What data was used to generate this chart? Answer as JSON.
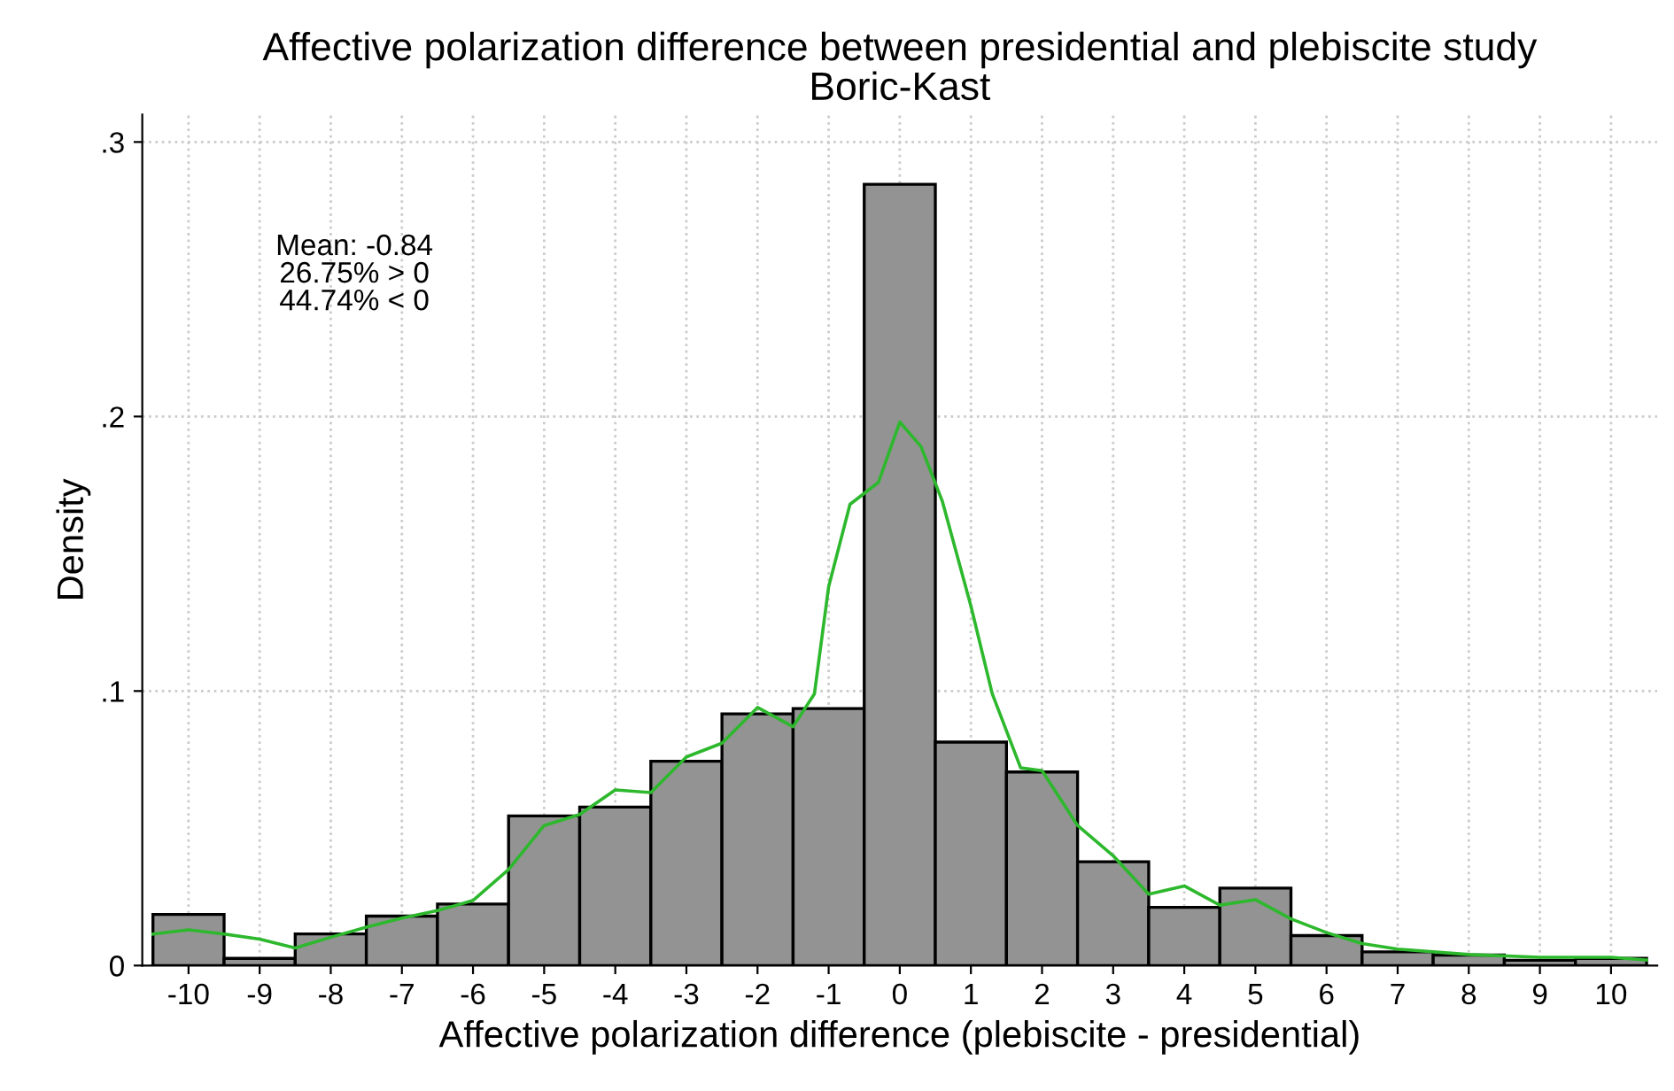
{
  "chart_data": {
    "type": "histogram",
    "title": "Affective polarization difference between presidential and plebiscite study\nBoric-Kast",
    "xlabel": "Affective polarization difference (plebiscite - presidential)",
    "ylabel": "Density",
    "bins": [
      -10.5,
      -9.5,
      -8.5,
      -7.5,
      -6.5,
      -5.5,
      -4.5,
      -3.5,
      -2.5,
      -1.5,
      -0.5,
      0.5,
      1.5,
      2.5,
      3.5,
      4.5,
      5.5,
      6.5,
      7.5,
      8.5,
      9.5,
      10.5
    ],
    "values": [
      0.0186,
      0.0026,
      0.0115,
      0.018,
      0.0224,
      0.0545,
      0.0577,
      0.0744,
      0.0917,
      0.0936,
      0.2846,
      0.0814,
      0.0705,
      0.0378,
      0.0212,
      0.0282,
      0.0109,
      0.005,
      0.0038,
      0.0019,
      0.0026
    ],
    "color": "#939393",
    "series": [
      {
        "type": "line",
        "color": "#2db82d",
        "x": [
          -10.5,
          -10,
          -9.5,
          -9,
          -8.5,
          -8,
          -7.5,
          -7,
          -6.5,
          -6,
          -5.5,
          -5,
          -4.5,
          -4,
          -3.5,
          -3,
          -2.5,
          -2,
          -1.5,
          -1.2,
          -1,
          -0.7,
          -0.3,
          0,
          0.3,
          0.6,
          1,
          1.3,
          1.7,
          2,
          2.5,
          3,
          3.5,
          4,
          4.5,
          5,
          5.5,
          6,
          6.5,
          7,
          8,
          9,
          10,
          10.5
        ],
        "values": [
          0.0115,
          0.013,
          0.0115,
          0.0096,
          0.0064,
          0.0103,
          0.014,
          0.0173,
          0.02,
          0.0237,
          0.035,
          0.051,
          0.055,
          0.064,
          0.063,
          0.076,
          0.081,
          0.094,
          0.087,
          0.099,
          0.138,
          0.168,
          0.176,
          0.198,
          0.189,
          0.169,
          0.131,
          0.099,
          0.072,
          0.071,
          0.051,
          0.04,
          0.026,
          0.029,
          0.022,
          0.024,
          0.017,
          0.012,
          0.008,
          0.006,
          0.004,
          0.003,
          0.003,
          0.002
        ]
      }
    ],
    "annotations": [
      "Mean: -0.84\n26.75% > 0\n44.74% < 0"
    ],
    "xlim": [
      -10.65,
      10.65
    ],
    "xticks": [
      {
        "value": -10,
        "label": "-10"
      },
      {
        "value": -9,
        "label": "-9"
      },
      {
        "value": -8,
        "label": "-8"
      },
      {
        "value": -7,
        "label": "-7"
      },
      {
        "value": -6,
        "label": "-6"
      },
      {
        "value": -5,
        "label": "-5"
      },
      {
        "value": -4,
        "label": "-4"
      },
      {
        "value": -3,
        "label": "-3"
      },
      {
        "value": -2,
        "label": "-2"
      },
      {
        "value": -1,
        "label": "-1"
      },
      0,
      1,
      2,
      3,
      4,
      5,
      6,
      7,
      8,
      9,
      10
    ],
    "ylim": [
      0,
      0.31
    ],
    "yticks": [
      0,
      {
        "value": 0.1,
        "label": ".1"
      },
      {
        "value": 0.2,
        "label": ".2"
      },
      {
        "value": 0.3,
        "label": ".3"
      }
    ],
    "grid": true
  }
}
